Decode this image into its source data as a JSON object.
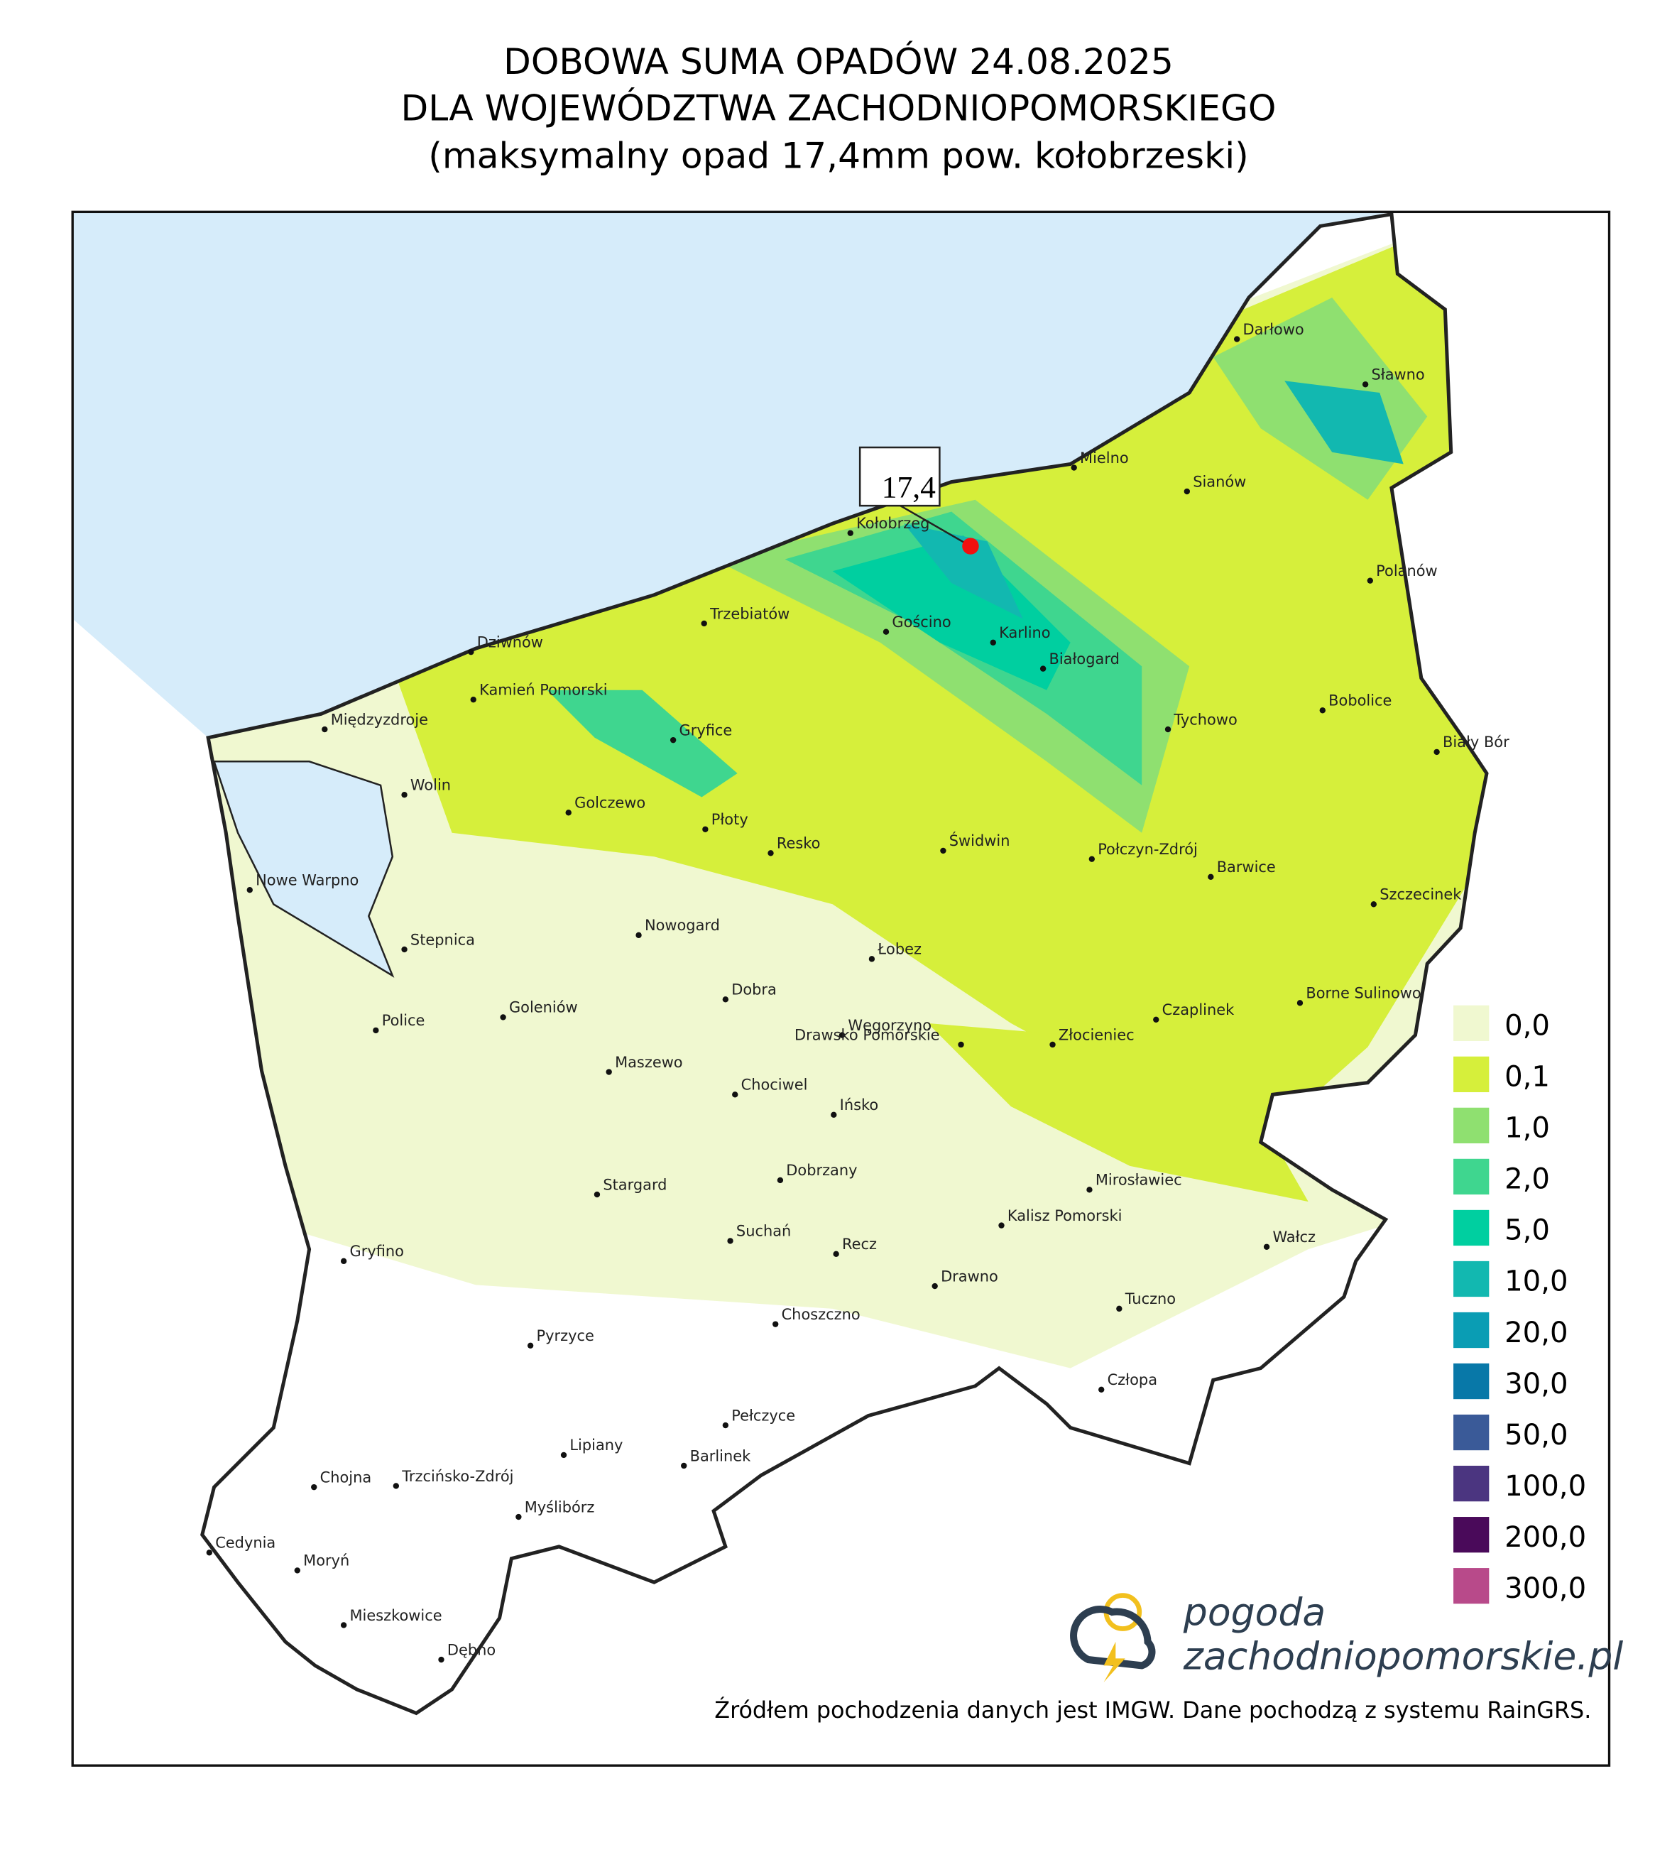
{
  "header": {
    "title_lines": [
      "DOBOWA SUMA OPADÓW 24.08.2025",
      "DLA WOJEWÓDZTWA ZACHODNIOPOMORSKIEGO",
      "(maksymalny opad 17,4mm pow. kołobrzeski)"
    ]
  },
  "annotation": {
    "label": "17,4"
  },
  "legend": [
    {
      "label": "0,0",
      "color": "#f0f8d0"
    },
    {
      "label": "0,1",
      "color": "#d6ef3b"
    },
    {
      "label": "1,0",
      "color": "#8fe070"
    },
    {
      "label": "2,0",
      "color": "#3fd68f"
    },
    {
      "label": "5,0",
      "color": "#00cfa0"
    },
    {
      "label": "10,0",
      "color": "#12b8b0"
    },
    {
      "label": "20,0",
      "color": "#0a9db4"
    },
    {
      "label": "30,0",
      "color": "#0878a8"
    },
    {
      "label": "50,0",
      "color": "#3a5a98"
    },
    {
      "label": "100,0",
      "color": "#4b3580"
    },
    {
      "label": "200,0",
      "color": "#4a0a5a"
    },
    {
      "label": "300,0",
      "color": "#b84a8a"
    }
  ],
  "cities": [
    "Darłowo",
    "Sławno",
    "Mielno",
    "Sianów",
    "Kołobrzeg",
    "Polanów",
    "Trzebiatów",
    "Gościno",
    "Karlino",
    "Białogard",
    "Dziwnów",
    "Kamień Pomorski",
    "Bobolice",
    "Tychowo",
    "Międzyzdroje",
    "Gryfice",
    "Biały Bór",
    "Wolin",
    "Golczewo",
    "Płoty",
    "Resko",
    "Świdwin",
    "Połczyn-Zdrój",
    "Barwice",
    "Nowe Warpno",
    "Szczecinek",
    "Nowogard",
    "Stepnica",
    "Łobez",
    "Dobra",
    "Borne Sulinowo",
    "Czaplinek",
    "Goleniów",
    "Police",
    "Węgorzyno",
    "Złocieniec",
    "Drawsko Pomorskie",
    "Maszewo",
    "Chociwel",
    "Ińsko",
    "Dobrzany",
    "Mirosławiec",
    "Stargard",
    "Kalisz Pomorski",
    "Suchań",
    "Wałcz",
    "Gryfino",
    "Recz",
    "Drawno",
    "Tuczno",
    "Choszczno",
    "Pyrzyce",
    "Człopa",
    "Pełczyce",
    "Lipiany",
    "Barlinek",
    "Chojna",
    "Trzcińsko-Zdrój",
    "Myślibórz",
    "Cedynia",
    "Moryń",
    "Mieszkowice",
    "Dębno"
  ],
  "logo": {
    "line1": "pogoda",
    "line2": "zachodniopomorskie.pl"
  },
  "footer": "Źródłem pochodzenia danych jest IMGW. Dane pochodzą z systemu RainGRS."
}
